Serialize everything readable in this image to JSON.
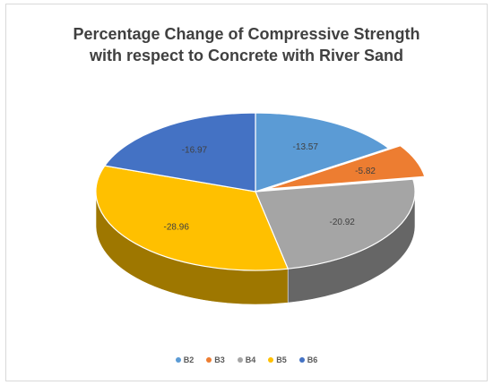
{
  "chart_data": {
    "type": "pie",
    "title_lines": [
      "Percentage Change of Compressive Strength",
      "with respect to Concrete with River Sand"
    ],
    "categories": [
      "B2",
      "B3",
      "B4",
      "B5",
      "B6"
    ],
    "values": [
      -13.57,
      -5.82,
      -20.92,
      -28.96,
      -16.97
    ],
    "labels": [
      "-13.57",
      "-5.82",
      "-20.92",
      "-28.96",
      "-16.97"
    ],
    "colors": [
      "#5b9bd5",
      "#ed7d31",
      "#a5a5a5",
      "#ffc000",
      "#4472c4"
    ],
    "exploded": "B3",
    "legend_position": "bottom",
    "style": "3d"
  }
}
